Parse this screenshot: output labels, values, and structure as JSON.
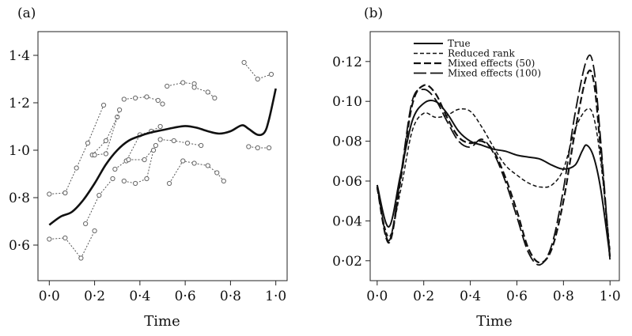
{
  "chart_data": [
    {
      "type": "scatter",
      "panel_label": "(a)",
      "xlabel": "Time",
      "ylabel": "",
      "xlim": [
        -0.05,
        1.05
      ],
      "ylim": [
        0.45,
        1.5
      ],
      "xticks": [
        "0·0",
        "0·2",
        "0·4",
        "0·6",
        "0·8",
        "1·0"
      ],
      "yticks": [
        "0·6",
        "0·8",
        "1·0",
        "1·2",
        "1·4"
      ],
      "xtick_values": [
        0,
        0.2,
        0.4,
        0.6,
        0.8,
        1.0
      ],
      "ytick_values": [
        0.6,
        0.8,
        1.0,
        1.2,
        1.4
      ],
      "grid": false,
      "mean_curve": {
        "x": [
          0.0,
          0.05,
          0.1,
          0.15,
          0.2,
          0.25,
          0.3,
          0.35,
          0.4,
          0.45,
          0.5,
          0.55,
          0.6,
          0.65,
          0.7,
          0.75,
          0.8,
          0.85,
          0.88,
          0.92,
          0.95,
          0.97,
          1.0
        ],
        "y": [
          0.685,
          0.72,
          0.74,
          0.79,
          0.86,
          0.94,
          1.0,
          1.04,
          1.06,
          1.075,
          1.085,
          1.095,
          1.102,
          1.095,
          1.08,
          1.07,
          1.08,
          1.105,
          1.09,
          1.065,
          1.075,
          1.13,
          1.26
        ]
      },
      "subjects": [
        {
          "x": [
            0.0,
            0.07
          ],
          "y": [
            0.815,
            0.82
          ]
        },
        {
          "x": [
            0.0,
            0.07,
            0.14,
            0.2
          ],
          "y": [
            0.625,
            0.63,
            0.545,
            0.66
          ]
        },
        {
          "x": [
            0.07,
            0.12,
            0.17,
            0.24
          ],
          "y": [
            0.82,
            0.925,
            1.03,
            1.19
          ]
        },
        {
          "x": [
            0.16,
            0.22,
            0.28
          ],
          "y": [
            0.69,
            0.81,
            0.88
          ]
        },
        {
          "x": [
            0.19,
            0.25,
            0.3
          ],
          "y": [
            0.98,
            1.04,
            1.14
          ]
        },
        {
          "x": [
            0.2,
            0.25,
            0.31
          ],
          "y": [
            0.98,
            0.985,
            1.17
          ]
        },
        {
          "x": [
            0.33,
            0.38,
            0.43,
            0.48,
            0.5
          ],
          "y": [
            1.215,
            1.22,
            1.225,
            1.21,
            1.195
          ]
        },
        {
          "x": [
            0.29,
            0.34,
            0.4,
            0.45,
            0.49
          ],
          "y": [
            0.92,
            0.955,
            1.065,
            1.08,
            1.1
          ]
        },
        {
          "x": [
            0.35,
            0.42,
            0.47
          ],
          "y": [
            0.96,
            0.96,
            1.02
          ]
        },
        {
          "x": [
            0.33,
            0.38,
            0.43,
            0.46
          ],
          "y": [
            0.87,
            0.86,
            0.88,
            1.0
          ]
        },
        {
          "x": [
            0.49,
            0.55,
            0.61,
            0.67
          ],
          "y": [
            1.045,
            1.04,
            1.03,
            1.02
          ]
        },
        {
          "x": [
            0.52,
            0.59,
            0.64
          ],
          "y": [
            1.27,
            1.285,
            1.28
          ]
        },
        {
          "x": [
            0.64,
            0.7,
            0.73
          ],
          "y": [
            1.265,
            1.245,
            1.22
          ]
        },
        {
          "x": [
            0.53,
            0.59,
            0.64,
            0.7,
            0.74,
            0.77
          ],
          "y": [
            0.86,
            0.955,
            0.945,
            0.935,
            0.905,
            0.87
          ]
        },
        {
          "x": [
            0.86,
            0.92,
            0.98
          ],
          "y": [
            1.37,
            1.3,
            1.32
          ]
        },
        {
          "x": [
            0.88,
            0.92,
            0.97
          ],
          "y": [
            1.015,
            1.01,
            1.01
          ]
        }
      ]
    },
    {
      "type": "line",
      "panel_label": "(b)",
      "xlabel": "Time",
      "ylabel": "",
      "xlim": [
        -0.03,
        1.04
      ],
      "ylim": [
        0.01,
        0.135
      ],
      "xticks": [
        "0·0",
        "0·2",
        "0·4",
        "0·6",
        "0·8",
        "1·0"
      ],
      "yticks": [
        "0·02",
        "0·04",
        "0·06",
        "0·08",
        "0·10",
        "0·12"
      ],
      "xtick_values": [
        0,
        0.2,
        0.4,
        0.6,
        0.8,
        1.0
      ],
      "ytick_values": [
        0.02,
        0.04,
        0.06,
        0.08,
        0.1,
        0.12
      ],
      "grid": false,
      "legend": {
        "position": "top-left",
        "entries": [
          "True",
          "Reduced rank",
          "Mixed effects (50)",
          "Mixed effects (100)"
        ]
      },
      "series": [
        {
          "name": "True",
          "style": "solid",
          "x": [
            0.0,
            0.05,
            0.1,
            0.15,
            0.2,
            0.25,
            0.3,
            0.35,
            0.4,
            0.45,
            0.5,
            0.55,
            0.6,
            0.65,
            0.7,
            0.75,
            0.8,
            0.85,
            0.88,
            0.9,
            0.93,
            0.96,
            1.0
          ],
          "y": [
            0.058,
            0.037,
            0.063,
            0.09,
            0.099,
            0.1,
            0.094,
            0.085,
            0.08,
            0.078,
            0.076,
            0.075,
            0.073,
            0.072,
            0.071,
            0.068,
            0.066,
            0.068,
            0.075,
            0.078,
            0.072,
            0.056,
            0.022
          ]
        },
        {
          "name": "Reduced rank",
          "style": "short-dash",
          "x": [
            0.0,
            0.05,
            0.1,
            0.15,
            0.2,
            0.25,
            0.3,
            0.35,
            0.4,
            0.45,
            0.5,
            0.55,
            0.6,
            0.65,
            0.7,
            0.75,
            0.8,
            0.85,
            0.9,
            0.93,
            0.96,
            1.0
          ],
          "y": [
            0.056,
            0.032,
            0.055,
            0.085,
            0.094,
            0.092,
            0.093,
            0.096,
            0.095,
            0.087,
            0.077,
            0.068,
            0.063,
            0.059,
            0.057,
            0.058,
            0.066,
            0.086,
            0.096,
            0.092,
            0.07,
            0.025
          ]
        },
        {
          "name": "Mixed effects (50)",
          "style": "medium-dash",
          "x": [
            0.0,
            0.05,
            0.1,
            0.15,
            0.2,
            0.25,
            0.3,
            0.35,
            0.4,
            0.45,
            0.5,
            0.55,
            0.6,
            0.65,
            0.7,
            0.75,
            0.8,
            0.85,
            0.9,
            0.93,
            0.96,
            1.0
          ],
          "y": [
            0.057,
            0.029,
            0.06,
            0.098,
            0.108,
            0.104,
            0.092,
            0.082,
            0.079,
            0.08,
            0.075,
            0.062,
            0.045,
            0.026,
            0.019,
            0.026,
            0.05,
            0.085,
            0.113,
            0.11,
            0.075,
            0.021
          ]
        },
        {
          "name": "Mixed effects (100)",
          "style": "long-dash",
          "x": [
            0.0,
            0.05,
            0.1,
            0.15,
            0.2,
            0.25,
            0.3,
            0.35,
            0.4,
            0.45,
            0.5,
            0.55,
            0.6,
            0.65,
            0.7,
            0.75,
            0.8,
            0.85,
            0.9,
            0.93,
            0.96,
            1.0
          ],
          "y": [
            0.058,
            0.03,
            0.062,
            0.1,
            0.106,
            0.101,
            0.09,
            0.08,
            0.077,
            0.081,
            0.074,
            0.06,
            0.042,
            0.024,
            0.018,
            0.028,
            0.056,
            0.094,
            0.121,
            0.117,
            0.08,
            0.02
          ]
        }
      ]
    }
  ]
}
